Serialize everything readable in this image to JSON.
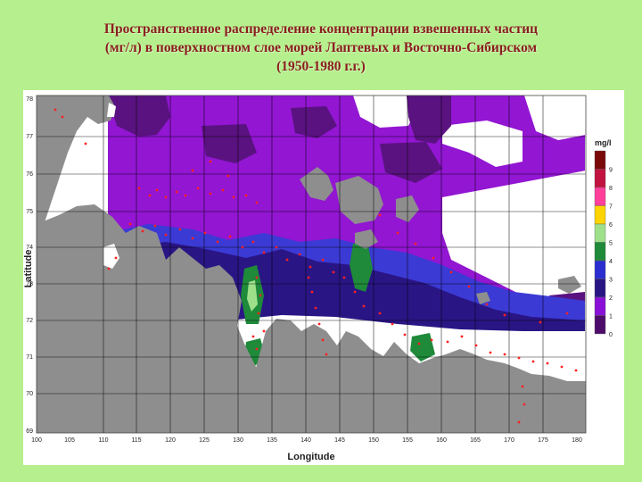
{
  "title": {
    "line1": "Пространственное распределение концентрации взвешенных частиц",
    "line2": "(мг/л) в поверхностном слое морей Лаптевых и Восточно-Сибирском",
    "line3": "(1950-1980 г.г.)"
  },
  "map": {
    "xlabel": "Longitude",
    "ylabel": "Latitude",
    "x_ticks": [
      "100",
      "105",
      "110",
      "115",
      "120",
      "125",
      "130",
      "135",
      "140",
      "145",
      "150",
      "155",
      "160",
      "165",
      "170",
      "175",
      "180"
    ],
    "y_ticks": [
      "78",
      "77",
      "76",
      "75",
      "74",
      "73",
      "72",
      "71",
      "70",
      "69"
    ],
    "x_range": [
      100,
      180
    ],
    "y_range": [
      69,
      78
    ],
    "grid": true
  },
  "legend": {
    "unit": "mg/l",
    "levels": [
      "9",
      "8",
      "7",
      "6",
      "5",
      "4",
      "3",
      "2",
      "1",
      "0"
    ],
    "colors": [
      "#7a0a0a",
      "#c2123f",
      "#ff3f9a",
      "#ffd400",
      "#9ee08a",
      "#1e8a3a",
      "#2a2ed0",
      "#2a1585",
      "#8a10d8",
      "#4e0c6a"
    ]
  },
  "colors": {
    "land": "#8e8e8e",
    "sea_deep": "#5a1280",
    "sea_mid": "#9216d2",
    "sea_blue": "#3b3ad4",
    "stations": "#ff2020"
  }
}
